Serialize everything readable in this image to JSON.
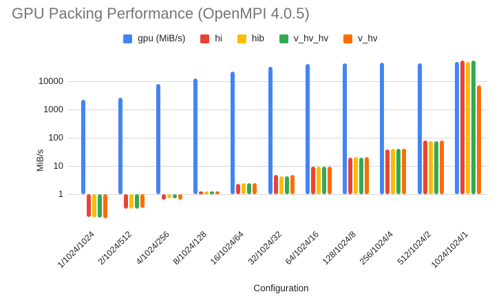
{
  "title": "GPU Packing Performance (OpenMPI 4.0.5)",
  "colors": {
    "title_text": "#757575",
    "axis_text": "#1f1f1f",
    "gridline": "#d6d6d6",
    "background": "#ffffff",
    "series_blue": "#4285F4",
    "series_red": "#EA4335",
    "series_yellow": "#FBBC04",
    "series_green": "#34A853",
    "series_orange": "#FF6D01"
  },
  "chart_data": {
    "type": "bar",
    "title": "GPU Packing Performance (OpenMPI 4.0.5)",
    "xlabel": "Configuration",
    "ylabel": "MiB/s",
    "y_scale": "log",
    "yticks": [
      1,
      10,
      100,
      1000,
      10000
    ],
    "ylim": [
      0.13,
      60000
    ],
    "grid": true,
    "legend_position": "top",
    "categories": [
      "1/1024/1024",
      "2/1024/512",
      "4/1024/256",
      "8/1024/128",
      "16/1024/64",
      "32/1024/32",
      "64/1024/16",
      "128/1024/8",
      "256/1024/4",
      "512/1024/2",
      "1024/1024/1"
    ],
    "series": [
      {
        "name": "gpu (MiB/s)",
        "color": "#4285F4",
        "values": [
          2200,
          2550,
          7800,
          12500,
          22500,
          32500,
          41000,
          43000,
          46000,
          42000,
          49000
        ]
      },
      {
        "name": "hi",
        "color": "#EA4335",
        "values": [
          0.16,
          0.31,
          0.65,
          1.25,
          2.35,
          4.7,
          9.5,
          19.5,
          39,
          78,
          55000
        ]
      },
      {
        "name": "hib",
        "color": "#FBBC04",
        "values": [
          0.15,
          0.31,
          0.7,
          1.12,
          2.4,
          4.4,
          9.5,
          20.5,
          40,
          76,
          49000
        ]
      },
      {
        "name": "v_hv_hv",
        "color": "#34A853",
        "values": [
          0.15,
          0.3,
          0.7,
          1.06,
          2.45,
          4.4,
          9.3,
          19.5,
          40,
          76,
          53000
        ]
      },
      {
        "name": "v_hv",
        "color": "#FF6D01",
        "values": [
          0.14,
          0.33,
          0.65,
          1.2,
          2.4,
          4.7,
          9.5,
          20.5,
          40,
          79,
          7000
        ]
      }
    ]
  }
}
